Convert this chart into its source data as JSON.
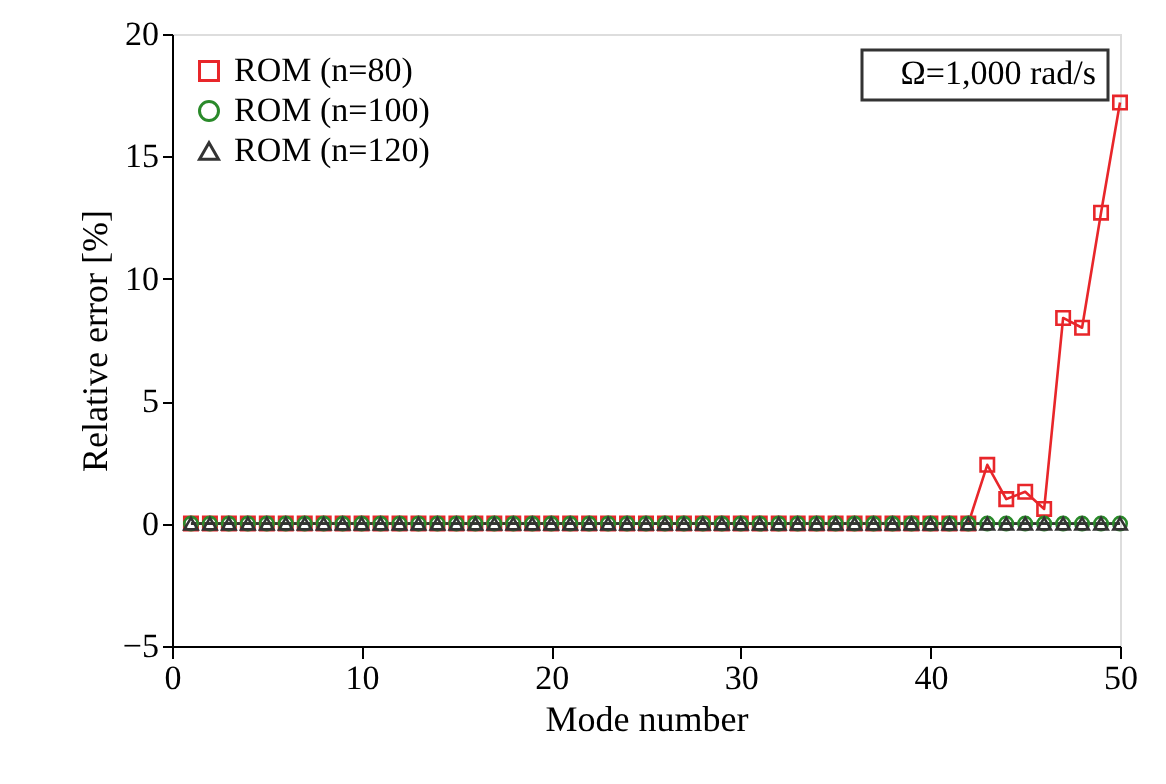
{
  "chart_data": {
    "type": "line",
    "xlabel": "Mode number",
    "ylabel": "Relative error [%]",
    "x": [
      1,
      2,
      3,
      4,
      5,
      6,
      7,
      8,
      9,
      10,
      11,
      12,
      13,
      14,
      15,
      16,
      17,
      18,
      19,
      20,
      21,
      22,
      23,
      24,
      25,
      26,
      27,
      28,
      29,
      30,
      31,
      32,
      33,
      34,
      35,
      36,
      37,
      38,
      39,
      40,
      41,
      42,
      43,
      44,
      45,
      46,
      47,
      48,
      49,
      50
    ],
    "series": [
      {
        "name": "ROM (n=80)",
        "color": "#e8262a",
        "marker": "square",
        "values": [
          0,
          0,
          0,
          0,
          0,
          0,
          0,
          0,
          0,
          0,
          0,
          0,
          0,
          0,
          0,
          0,
          0,
          0,
          0,
          0,
          0,
          0,
          0,
          0,
          0,
          0,
          0,
          0,
          0,
          0,
          0,
          0,
          0,
          0,
          0,
          0,
          0,
          0,
          0,
          0,
          0,
          0,
          2.4,
          1.0,
          1.3,
          0.6,
          8.4,
          8.0,
          12.7,
          17.2
        ]
      },
      {
        "name": "ROM (n=100)",
        "color": "#2a8a2a",
        "marker": "circle",
        "values": [
          0,
          0,
          0,
          0,
          0,
          0,
          0,
          0,
          0,
          0,
          0,
          0,
          0,
          0,
          0,
          0,
          0,
          0,
          0,
          0,
          0,
          0,
          0,
          0,
          0,
          0,
          0,
          0,
          0,
          0,
          0,
          0,
          0,
          0,
          0,
          0,
          0,
          0,
          0,
          0,
          0,
          0,
          0,
          0,
          0,
          0,
          0,
          0,
          0,
          0
        ]
      },
      {
        "name": "ROM (n=120)",
        "color": "#333333",
        "marker": "triangle",
        "values": [
          0,
          0,
          0,
          0,
          0,
          0,
          0,
          0,
          0,
          0,
          0,
          0,
          0,
          0,
          0,
          0,
          0,
          0,
          0,
          0,
          0,
          0,
          0,
          0,
          0,
          0,
          0,
          0,
          0,
          0,
          0,
          0,
          0,
          0,
          0,
          0,
          0,
          0,
          0,
          0,
          0,
          0,
          0,
          0,
          0,
          0,
          0,
          0,
          0,
          0
        ]
      }
    ],
    "xlim": [
      0,
      50
    ],
    "xticks": [
      0,
      10,
      20,
      30,
      40,
      50
    ],
    "ylim": [
      -5,
      20
    ],
    "yticks": [
      -5,
      0,
      5,
      10,
      15,
      20
    ],
    "grid": false,
    "legend": "top left",
    "line_style": "solid",
    "annotations": [
      "Ω=1,000 rad/s"
    ]
  }
}
